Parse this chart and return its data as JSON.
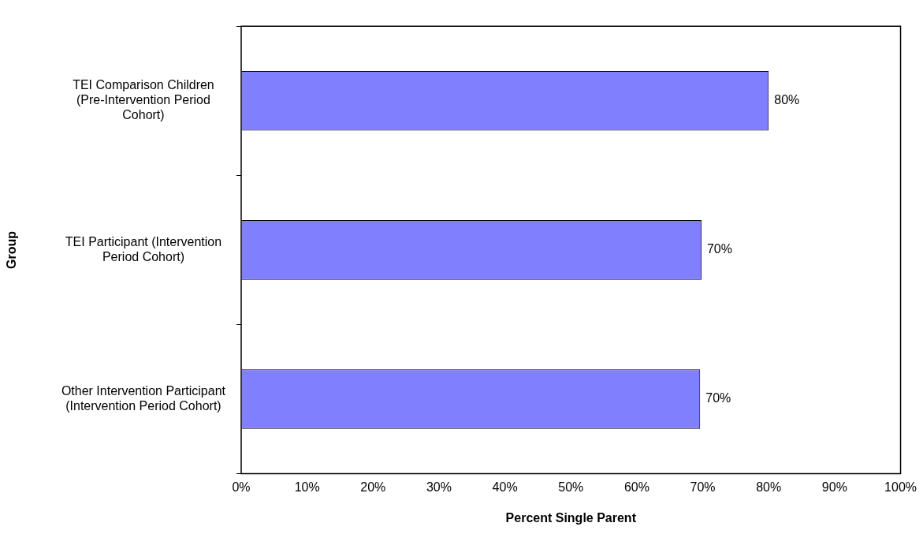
{
  "chart_data": {
    "type": "bar",
    "orientation": "horizontal",
    "xlabel": "Percent Single Parent",
    "ylabel": "Group",
    "categories": [
      "TEI Comparison Children (Pre-Intervention Period Cohort)",
      "TEI Participant (Intervention Period Cohort)",
      "Other Intervention Participant (Intervention Period Cohort)"
    ],
    "values": [
      80,
      69.8,
      69.6
    ],
    "value_labels": [
      "80%",
      "70%",
      "70%"
    ],
    "color": "#8080ff",
    "xlim": [
      0,
      100
    ],
    "xticks": [
      {
        "value": 0,
        "label": "0%"
      },
      {
        "value": 10,
        "label": "10%"
      },
      {
        "value": 20,
        "label": "20%"
      },
      {
        "value": 30,
        "label": "30%"
      },
      {
        "value": 40,
        "label": "40%"
      },
      {
        "value": 50,
        "label": "50%"
      },
      {
        "value": 60,
        "label": "60%"
      },
      {
        "value": 70,
        "label": "70%"
      },
      {
        "value": 80,
        "label": "80%"
      },
      {
        "value": 90,
        "label": "90%"
      },
      {
        "value": 100,
        "label": "100%"
      }
    ],
    "grid": false,
    "legend": false
  }
}
